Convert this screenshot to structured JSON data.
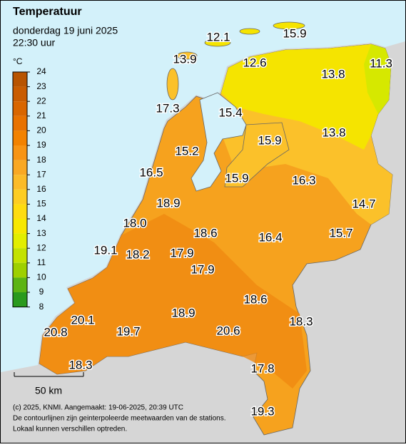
{
  "header": {
    "title": "Temperatuur",
    "date": "donderdag 19 juni 2025",
    "time": "22:30 uur"
  },
  "legend": {
    "unit": "°C",
    "ticks": [
      24,
      23,
      22,
      21,
      20,
      19,
      18,
      17,
      16,
      15,
      14,
      13,
      12,
      11,
      10,
      9,
      8
    ],
    "colors": [
      "#b85400",
      "#c95c00",
      "#d96600",
      "#e87200",
      "#f28200",
      "#f79414",
      "#f9a823",
      "#fbbb28",
      "#fdcd22",
      "#fedc10",
      "#f7e800",
      "#e2ee00",
      "#c3e200",
      "#9ed000",
      "#5cb414",
      "#2a9a1e",
      "#138c18"
    ]
  },
  "stations": [
    "12.1",
    "15.9",
    "13.9",
    "12.6",
    "13.8",
    "11.3",
    "17.3",
    "15.4",
    "13.8",
    "15.9",
    "15.2",
    "16.5",
    "15.9",
    "16.3",
    "14.7",
    "18.9",
    "18.0",
    "18.6",
    "16.4",
    "15.7",
    "19.1",
    "18.2",
    "17.9",
    "17.9",
    "18.6",
    "20.1",
    "18.9",
    "18.3",
    "20.8",
    "19.7",
    "20.6",
    "18.3",
    "17.8",
    "19.3"
  ],
  "scale": {
    "label": "50 km"
  },
  "footer": [
    "(c) 2025, KNMI. Aangemaakt: 19-06-2025, 20:39 UTC",
    "De contourlijnen zijn geinterpoleerde meetwaarden van de stations.",
    "Lokaal kunnen verschillen optreden."
  ]
}
